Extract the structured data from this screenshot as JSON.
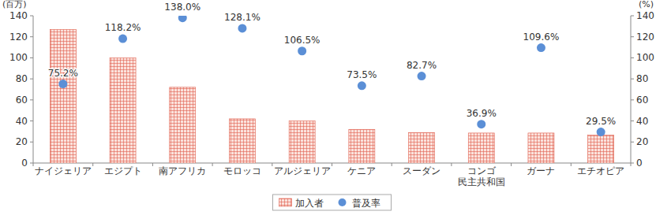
{
  "chart_data": {
    "type": "bar",
    "ylabel": "(百万)",
    "y2label": "(%)",
    "categories": [
      "ナイジェリア",
      "エジプト",
      "南アフリカ",
      "モロッコ",
      "アルジェリア",
      "ケニア",
      "スーダン",
      "コンゴ\n民主共和国",
      "ガーナ",
      "エチオピア"
    ],
    "series": [
      {
        "name": "加入者",
        "type": "bar",
        "color": "#e0604f",
        "values": [
          127,
          100,
          72,
          42,
          40,
          32,
          29,
          28.5,
          28.5,
          26.5
        ]
      },
      {
        "name": "普及率",
        "type": "scatter",
        "axis": "y2",
        "color": "#5b8fd6",
        "marker": "circle",
        "data_labels": true,
        "values": [
          75.2,
          118.2,
          138.0,
          128.1,
          106.5,
          73.5,
          82.7,
          36.9,
          109.6,
          29.5
        ],
        "value_labels": [
          "75.2%",
          "118.2%",
          "138.0%",
          "128.1%",
          "106.5%",
          "73.5%",
          "82.7%",
          "36.9%",
          "109.6%",
          "29.5%"
        ]
      }
    ],
    "ylim": [
      0,
      140
    ],
    "yticks": [
      0,
      20,
      40,
      60,
      80,
      100,
      120,
      140
    ],
    "y2lim": [
      0,
      140
    ],
    "y2ticks": [
      0,
      20,
      40,
      60,
      80,
      100,
      120,
      140
    ],
    "grid": false,
    "legend": "bottom"
  }
}
